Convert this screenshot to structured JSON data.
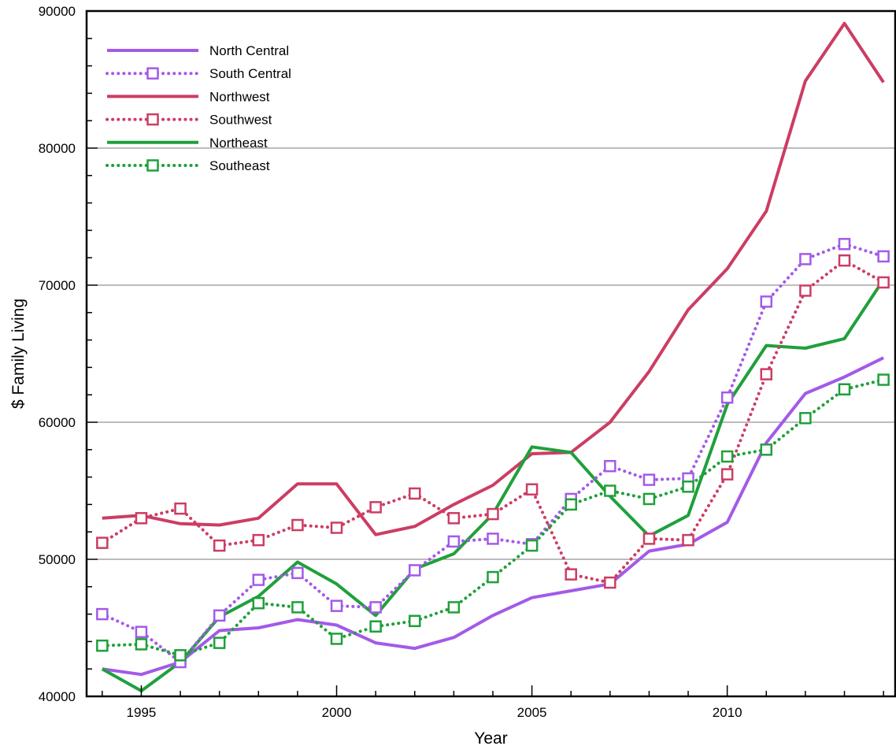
{
  "chart_data": {
    "type": "line",
    "title": "",
    "xlabel": "Year",
    "ylabel": "$ Family Living",
    "xlim": [
      1993.6,
      2014.3
    ],
    "ylim": [
      40000,
      90000
    ],
    "x_ticks": [
      1995,
      2000,
      2005,
      2010
    ],
    "y_ticks": [
      40000,
      50000,
      60000,
      70000,
      80000,
      90000
    ],
    "grid": "horizontal",
    "legend_position": "top-left",
    "x": [
      1994,
      1995,
      1996,
      1997,
      1998,
      1999,
      2000,
      2001,
      2002,
      2003,
      2004,
      2005,
      2006,
      2007,
      2008,
      2009,
      2010,
      2011,
      2012,
      2013,
      2014
    ],
    "series": [
      {
        "name": "North Central",
        "color": "#a35ae8",
        "style": "solid",
        "marker": "none",
        "values": [
          42000,
          41600,
          42500,
          44800,
          45000,
          45600,
          45200,
          43900,
          43500,
          44300,
          45900,
          47200,
          47700,
          48200,
          50600,
          51100,
          52700,
          58500,
          62100,
          63300,
          64700
        ]
      },
      {
        "name": "South Central",
        "color": "#a35ae8",
        "style": "dotted",
        "marker": "square",
        "values": [
          46000,
          44700,
          42500,
          45900,
          48500,
          49000,
          46600,
          46500,
          49200,
          51300,
          51500,
          51100,
          54400,
          56800,
          55800,
          55900,
          61800,
          68800,
          71900,
          73000,
          72100
        ]
      },
      {
        "name": "Northwest",
        "color": "#cc3d63",
        "style": "solid",
        "marker": "none",
        "values": [
          53000,
          53200,
          52600,
          52500,
          53000,
          55500,
          55500,
          51800,
          52400,
          54000,
          55400,
          57700,
          57800,
          60000,
          63700,
          68200,
          71200,
          75400,
          84900,
          89100,
          84800
        ]
      },
      {
        "name": "Southwest",
        "color": "#cc3d63",
        "style": "dotted",
        "marker": "square",
        "values": [
          51200,
          53000,
          53700,
          51000,
          51400,
          52500,
          52300,
          53800,
          54800,
          53000,
          53300,
          55100,
          48900,
          48300,
          51500,
          51400,
          56200,
          63500,
          69600,
          71800,
          70200
        ]
      },
      {
        "name": "Northeast",
        "color": "#1fa03b",
        "style": "solid",
        "marker": "none",
        "values": [
          42000,
          40400,
          42500,
          45800,
          47300,
          49800,
          48200,
          45900,
          49300,
          50400,
          53300,
          58200,
          57800,
          54600,
          51700,
          53200,
          61300,
          65600,
          65400,
          66100,
          70400
        ]
      },
      {
        "name": "Southeast",
        "color": "#1fa03b",
        "style": "dotted",
        "marker": "square",
        "values": [
          43700,
          43800,
          43000,
          43900,
          46800,
          46500,
          44200,
          45100,
          45500,
          46500,
          48700,
          51000,
          54000,
          55000,
          54400,
          55300,
          57500,
          58000,
          60300,
          62400,
          63100
        ]
      }
    ]
  }
}
